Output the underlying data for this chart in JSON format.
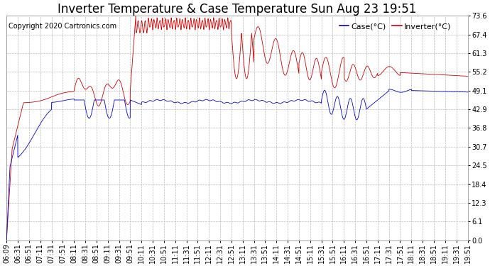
{
  "title": "Inverter Temperature & Case Temperature Sun Aug 23 19:51",
  "copyright": "Copyright 2020 Cartronics.com",
  "legend_case": "Case(°C)",
  "legend_inverter": "Inverter(°C)",
  "y_ticks": [
    0.0,
    6.1,
    12.3,
    18.4,
    24.5,
    30.7,
    36.8,
    42.9,
    49.1,
    55.2,
    61.3,
    67.4,
    73.6
  ],
  "y_min": 0.0,
  "y_max": 73.6,
  "background_color": "#ffffff",
  "grid_color": "#bbbbbb",
  "inverter_color": "#cc0000",
  "case_color": "#0000cc",
  "title_fontsize": 12,
  "tick_fontsize": 7,
  "copyright_fontsize": 7,
  "legend_fontsize": 8,
  "x_tick_labels": [
    "06:09",
    "06:31",
    "06:51",
    "07:11",
    "07:31",
    "07:51",
    "08:11",
    "08:31",
    "08:51",
    "09:11",
    "09:31",
    "09:51",
    "10:11",
    "10:31",
    "10:51",
    "11:11",
    "11:31",
    "11:51",
    "12:11",
    "12:31",
    "12:51",
    "13:11",
    "13:31",
    "13:51",
    "14:11",
    "14:31",
    "14:51",
    "15:11",
    "15:31",
    "15:51",
    "16:11",
    "16:31",
    "16:51",
    "17:11",
    "17:31",
    "17:51",
    "18:11",
    "18:31",
    "18:51",
    "19:11",
    "19:31",
    "19:51"
  ]
}
